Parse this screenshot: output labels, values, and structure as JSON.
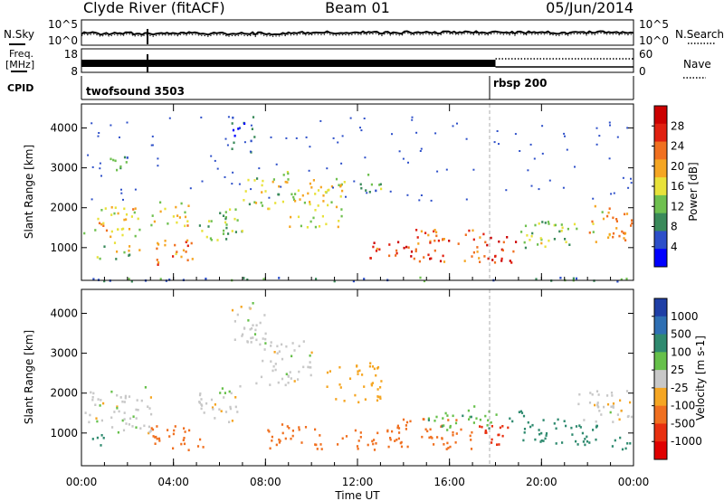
{
  "header": {
    "station": "Clyde River (fitACF)",
    "beam": "Beam 01",
    "date": "05/Jun/2014"
  },
  "strip": {
    "nsky_label": "N.Sky",
    "nsky_ticks": [
      "10^5",
      "10^0"
    ],
    "nsearch_label": "N.Search",
    "nsearch_ticks": [
      "10^5",
      "10^0"
    ],
    "freq_label_1": "Freq.",
    "freq_label_2": "[MHz]",
    "freq_ticks": [
      "18",
      "8"
    ],
    "nave_label": "Nave",
    "nave_ticks": [
      "60",
      "0"
    ],
    "cpid_label": "CPID",
    "cpid_segments": [
      {
        "name": "twofsound 3503",
        "start_hour": 0,
        "end_hour": 18
      },
      {
        "name": "rbsp 200",
        "start_hour": 18,
        "end_hour": 24
      }
    ]
  },
  "power_panel": {
    "ylabel": "Slant Range [km]",
    "yticks": [
      "4000",
      "3000",
      "2000",
      "1000"
    ],
    "colorbar_label": "Power [dB]",
    "colorbar_ticks": [
      "28",
      "24",
      "20",
      "16",
      "12",
      "8",
      "4"
    ],
    "colors": [
      "#0000ff",
      "#2d4fc9",
      "#3a8a5a",
      "#6fc04f",
      "#e8e23a",
      "#f5a623",
      "#f07020",
      "#e02010",
      "#cc0000"
    ]
  },
  "velocity_panel": {
    "ylabel": "Slant Range [km]",
    "yticks": [
      "4000",
      "3000",
      "2000",
      "1000"
    ],
    "colorbar_label": "Velocity [m s-1]",
    "colorbar_ticks": [
      "1000",
      "500",
      "100",
      "25",
      "-25",
      "-100",
      "-500",
      "-1000"
    ],
    "colors": [
      "#1f3fa6",
      "#2e6fb3",
      "#2f8a6f",
      "#66c04a",
      "#c8c8c8",
      "#f5a623",
      "#f07020",
      "#e83010",
      "#e00000"
    ]
  },
  "xaxis": {
    "ticks": [
      "00:00",
      "04:00",
      "08:00",
      "12:00",
      "16:00",
      "20:00",
      "00:00"
    ],
    "label": "Time UT"
  },
  "chart_data": [
    {
      "type": "heatmap",
      "title": "Clyde River (fitACF) Beam 01 05/Jun/2014",
      "xlabel": "Time UT",
      "ylabel": "Slant Range [km]",
      "colorbar_label": "Power [dB]",
      "x_range_hours": [
        0,
        24
      ],
      "ylim_km": [
        180,
        4600
      ],
      "zlim": [
        0,
        30
      ],
      "colorbar_ticks": [
        4,
        8,
        12,
        16,
        20,
        24,
        28
      ],
      "regions": [
        {
          "t": [
            0.0,
            2.5
          ],
          "r": [
            1300,
            2100
          ],
          "power": 16
        },
        {
          "t": [
            0.5,
            2.5
          ],
          "r": [
            650,
            1150
          ],
          "power": 13
        },
        {
          "t": [
            1.0,
            2.0
          ],
          "r": [
            2650,
            3300
          ],
          "power": 8
        },
        {
          "t": [
            3.0,
            4.8
          ],
          "r": [
            1500,
            2200
          ],
          "power": 16
        },
        {
          "t": [
            3.2,
            4.8
          ],
          "r": [
            600,
            1300
          ],
          "power": 20
        },
        {
          "t": [
            5.0,
            7.0
          ],
          "r": [
            1200,
            2000
          ],
          "power": 12
        },
        {
          "t": [
            6.5,
            7.5
          ],
          "r": [
            3400,
            4300
          ],
          "power": 6
        },
        {
          "t": [
            7.0,
            9.0
          ],
          "r": [
            2000,
            3000
          ],
          "power": 14
        },
        {
          "t": [
            9.0,
            11.5
          ],
          "r": [
            1500,
            2800
          ],
          "power": 15
        },
        {
          "t": [
            12.0,
            13.0
          ],
          "r": [
            2400,
            2900
          ],
          "power": 10
        },
        {
          "t": [
            12.5,
            14.5
          ],
          "r": [
            700,
            1200
          ],
          "power": 24
        },
        {
          "t": [
            14.5,
            17.5
          ],
          "r": [
            650,
            1500
          ],
          "power": 22
        },
        {
          "t": [
            17.5,
            19.0
          ],
          "r": [
            600,
            1300
          ],
          "power": 26
        },
        {
          "t": [
            19.0,
            21.5
          ],
          "r": [
            1000,
            1700
          ],
          "power": 12
        },
        {
          "t": [
            22.0,
            24.0
          ],
          "r": [
            1100,
            2100
          ],
          "power": 18
        },
        {
          "t": [
            0.0,
            24.0
          ],
          "r": [
            180,
            280
          ],
          "power": 8
        }
      ]
    },
    {
      "type": "heatmap",
      "xlabel": "Time UT",
      "ylabel": "Slant Range [km]",
      "colorbar_label": "Velocity [m s-1]",
      "x_range_hours": [
        0,
        24
      ],
      "ylim_km": [
        180,
        4600
      ],
      "colorbar_ticks": [
        1000,
        500,
        100,
        25,
        -25,
        -100,
        -500,
        -1000
      ],
      "regions": [
        {
          "t": [
            0.0,
            3.0
          ],
          "r": [
            1300,
            2200
          ],
          "velocity": 0
        },
        {
          "t": [
            0.0,
            1.0
          ],
          "r": [
            650,
            1000
          ],
          "velocity": 150
        },
        {
          "t": [
            1.0,
            3.0
          ],
          "r": [
            900,
            1300
          ],
          "velocity": 0
        },
        {
          "t": [
            3.0,
            5.5
          ],
          "r": [
            600,
            1200
          ],
          "velocity": -300
        },
        {
          "t": [
            5.0,
            7.0
          ],
          "r": [
            1300,
            2200
          ],
          "velocity": 0
        },
        {
          "t": [
            6.5,
            8.0
          ],
          "r": [
            3300,
            4300
          ],
          "velocity": 0
        },
        {
          "t": [
            7.5,
            10.0
          ],
          "r": [
            2200,
            3400
          ],
          "velocity": 0
        },
        {
          "t": [
            8.0,
            10.5
          ],
          "r": [
            600,
            1300
          ],
          "velocity": -300
        },
        {
          "t": [
            10.5,
            13.0
          ],
          "r": [
            1800,
            2800
          ],
          "velocity": -60
        },
        {
          "t": [
            11.0,
            13.5
          ],
          "r": [
            600,
            1100
          ],
          "velocity": -300
        },
        {
          "t": [
            13.5,
            17.0
          ],
          "r": [
            600,
            1400
          ],
          "velocity": -350
        },
        {
          "t": [
            15.0,
            18.0
          ],
          "r": [
            1100,
            1700
          ],
          "velocity": 80
        },
        {
          "t": [
            17.0,
            18.5
          ],
          "r": [
            600,
            1200
          ],
          "velocity": -600
        },
        {
          "t": [
            18.5,
            20.5
          ],
          "r": [
            800,
            1600
          ],
          "velocity": 400
        },
        {
          "t": [
            20.5,
            22.5
          ],
          "r": [
            700,
            1400
          ],
          "velocity": 150
        },
        {
          "t": [
            21.5,
            24.0
          ],
          "r": [
            1300,
            2100
          ],
          "velocity": 0
        },
        {
          "t": [
            23.0,
            24.0
          ],
          "r": [
            600,
            1000
          ],
          "velocity": 200
        }
      ]
    }
  ]
}
